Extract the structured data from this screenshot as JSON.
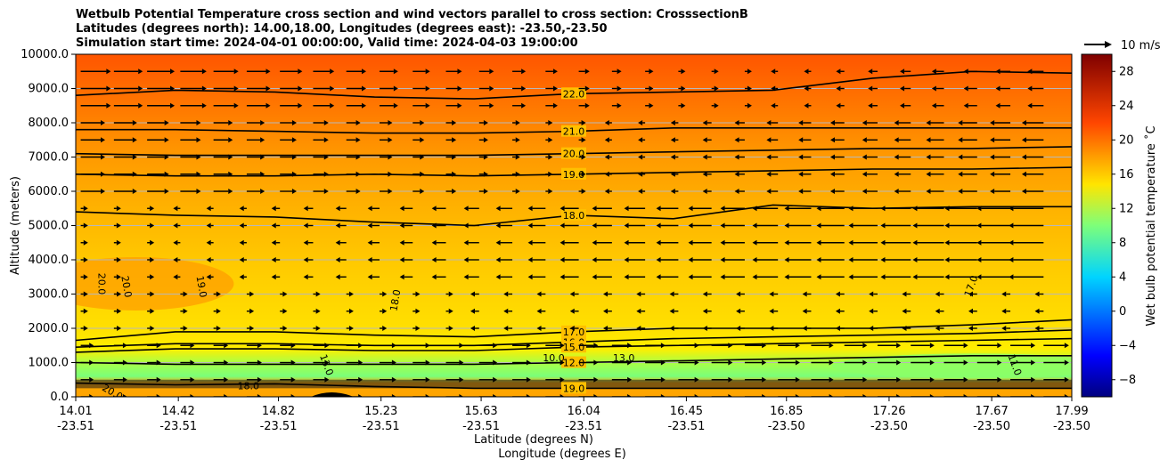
{
  "chart_data": {
    "type": "cross-section-contour",
    "title_lines": [
      "Wetbulb Potential Temperature cross section and wind vectors parallel to cross section: CrosssectionB",
      "Latitudes (degrees north): 14.00,18.00, Longitudes (degrees east): -23.50,-23.50",
      "Simulation start time: 2024-04-01 00:00:00, Valid time: 2024-04-03 19:00:00"
    ],
    "ylabel": "Altitude (meters)",
    "xlabel": "Latitude (degrees N)",
    "xlabel2": "Longitude (degrees E)",
    "ylim": [
      0,
      10000
    ],
    "yticks": [
      "0.0",
      "1000.0",
      "2000.0",
      "3000.0",
      "4000.0",
      "5000.0",
      "6000.0",
      "7000.0",
      "8000.0",
      "9000.0",
      "10000.0"
    ],
    "x_lat": [
      "14.01",
      "14.42",
      "14.82",
      "15.23",
      "15.63",
      "16.04",
      "16.45",
      "16.85",
      "17.26",
      "17.67",
      "17.99"
    ],
    "x_lon": [
      "-23.51",
      "-23.51",
      "-23.51",
      "-23.51",
      "-23.51",
      "-23.51",
      "-23.51",
      "-23.50",
      "-23.50",
      "-23.50",
      "-23.50"
    ],
    "x_pos": [
      14.01,
      14.42,
      14.82,
      15.23,
      15.63,
      16.04,
      16.45,
      16.85,
      17.26,
      17.67,
      17.99
    ],
    "xlim": [
      14.01,
      17.99
    ],
    "colorbar": {
      "label": "Wet bulb potential temperature ˚C",
      "ticks": [
        "28",
        "24",
        "20",
        "16",
        "12",
        "8",
        "4",
        "0",
        "−4",
        "−8"
      ],
      "tick_values": [
        28,
        24,
        20,
        16,
        12,
        8,
        4,
        0,
        -4,
        -8
      ],
      "range": [
        -10,
        30
      ]
    },
    "wind_key": "10 m/s",
    "contour_lines": [
      {
        "level": 22,
        "label": "22.0",
        "y": [
          8800,
          8950,
          8900,
          8750,
          8700,
          8850,
          8900,
          8950,
          9300,
          9500,
          9450
        ],
        "label_x": 16.0
      },
      {
        "level": 21,
        "label": "21.0",
        "y": [
          7800,
          7800,
          7750,
          7700,
          7700,
          7750,
          7850,
          7850,
          7850,
          7850,
          7850
        ],
        "label_x": 16.0
      },
      {
        "level": 20,
        "label": "20.0",
        "y": [
          7100,
          7050,
          7050,
          7050,
          7050,
          7100,
          7150,
          7200,
          7250,
          7250,
          7300
        ],
        "label_x": 16.0
      },
      {
        "level": 19,
        "label": "19.0",
        "y": [
          6500,
          6450,
          6450,
          6500,
          6450,
          6500,
          6550,
          6600,
          6650,
          6650,
          6700
        ],
        "label_x": 16.0
      },
      {
        "level": 18,
        "label": "18.0",
        "y": [
          5400,
          5300,
          5250,
          5100,
          5000,
          5300,
          5200,
          5600,
          5500,
          5550,
          5550
        ],
        "label_x": 16.0
      },
      {
        "level": 17,
        "label": "17.0",
        "y": [
          1650,
          1900,
          1900,
          1800,
          1750,
          1900,
          2000,
          2000,
          2000,
          2100,
          2250
        ],
        "label_x": 16.0
      },
      {
        "level": 16,
        "label": "16.0",
        "y": [
          1450,
          1550,
          1550,
          1500,
          1500,
          1600,
          1700,
          1750,
          1800,
          1850,
          1950
        ],
        "label_x": 16.0
      },
      {
        "level": 15,
        "label": "15.0",
        "y": [
          1300,
          1400,
          1400,
          1350,
          1350,
          1450,
          1500,
          1550,
          1600,
          1650,
          1700
        ],
        "label_x": 16.0
      },
      {
        "level": 12,
        "label": "12.0",
        "y": [
          1000,
          950,
          950,
          950,
          950,
          1000,
          1050,
          1100,
          1150,
          1200,
          1200
        ],
        "label_x": 16.0
      },
      {
        "level": 19,
        "label": "19.0",
        "y": [
          400,
          350,
          380,
          300,
          250,
          250,
          250,
          250,
          250,
          250,
          250
        ],
        "label_x": 16.0
      }
    ],
    "contour_labels": [
      "20.0",
      "20.0",
      "19.0",
      "18.0",
      "17.0",
      "11.0",
      "13.0",
      "18.0",
      "20.0",
      "10.0",
      "13.0"
    ],
    "wind_rows_m": [
      9500,
      9000,
      8500,
      8000,
      7500,
      7000,
      6500,
      6000,
      5500,
      5000,
      4500,
      4000,
      3500,
      3000,
      2500,
      2000,
      1500,
      1000,
      500,
      0
    ]
  }
}
